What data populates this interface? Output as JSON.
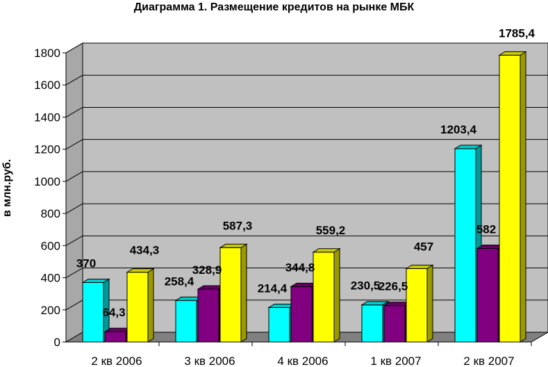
{
  "chart_data": {
    "type": "bar",
    "title": "Диаграмма 1. Размещение кредитов на рынке МБК",
    "ylabel": "в млн.руб.",
    "xlabel": "",
    "categories": [
      "2 кв 2006",
      "3 кв 2006",
      "4 кв 2006",
      "1 кв 2007",
      "2 кв 2007"
    ],
    "series": [
      {
        "color": "#00FFFF",
        "values": [
          370,
          258.4,
          214.4,
          230.5,
          1203.4
        ],
        "labels": [
          "370",
          "258,4",
          "214,4",
          "230,5",
          "1203,4"
        ]
      },
      {
        "color": "#800080",
        "values": [
          64.3,
          328.9,
          344.8,
          226.5,
          582
        ],
        "labels": [
          "64,3",
          "328,9",
          "344,8",
          "226,5",
          "582"
        ]
      },
      {
        "color": "#FFFF00",
        "values": [
          434.3,
          587.3,
          559.2,
          457,
          1785.4
        ],
        "labels": [
          "434,3",
          "587,3",
          "559,2",
          "457",
          "1785,4"
        ]
      }
    ],
    "yticks": [
      "0",
      "200",
      "400",
      "600",
      "800",
      "1000",
      "1200",
      "1400",
      "1600",
      "1800"
    ],
    "ylim": [
      0,
      1800
    ],
    "grid": true,
    "style": "3d"
  }
}
